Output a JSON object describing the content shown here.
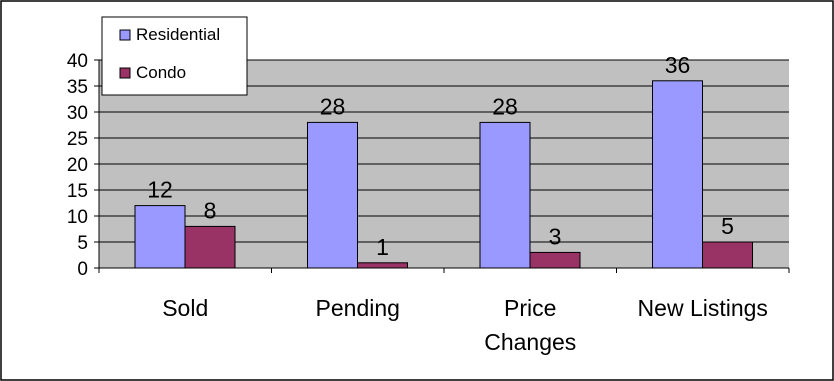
{
  "chart_data": {
    "type": "bar",
    "title": "",
    "xlabel": "",
    "ylabel": "",
    "categories": [
      [
        "Sold"
      ],
      [
        "Pending"
      ],
      [
        "Price",
        "Changes"
      ],
      [
        "New Listings"
      ]
    ],
    "series": [
      {
        "name": "Residential",
        "values": [
          12,
          28,
          28,
          36
        ],
        "color": "#9999ff"
      },
      {
        "name": "Condo",
        "values": [
          8,
          1,
          3,
          5
        ],
        "color": "#993366"
      }
    ],
    "ylim": [
      0,
      40
    ],
    "yticks": [
      0,
      5,
      10,
      15,
      20,
      25,
      30,
      35,
      40
    ],
    "plot_background": "#c0c0c0",
    "grid": true,
    "legend_position": "top-left",
    "data_labels": true
  }
}
